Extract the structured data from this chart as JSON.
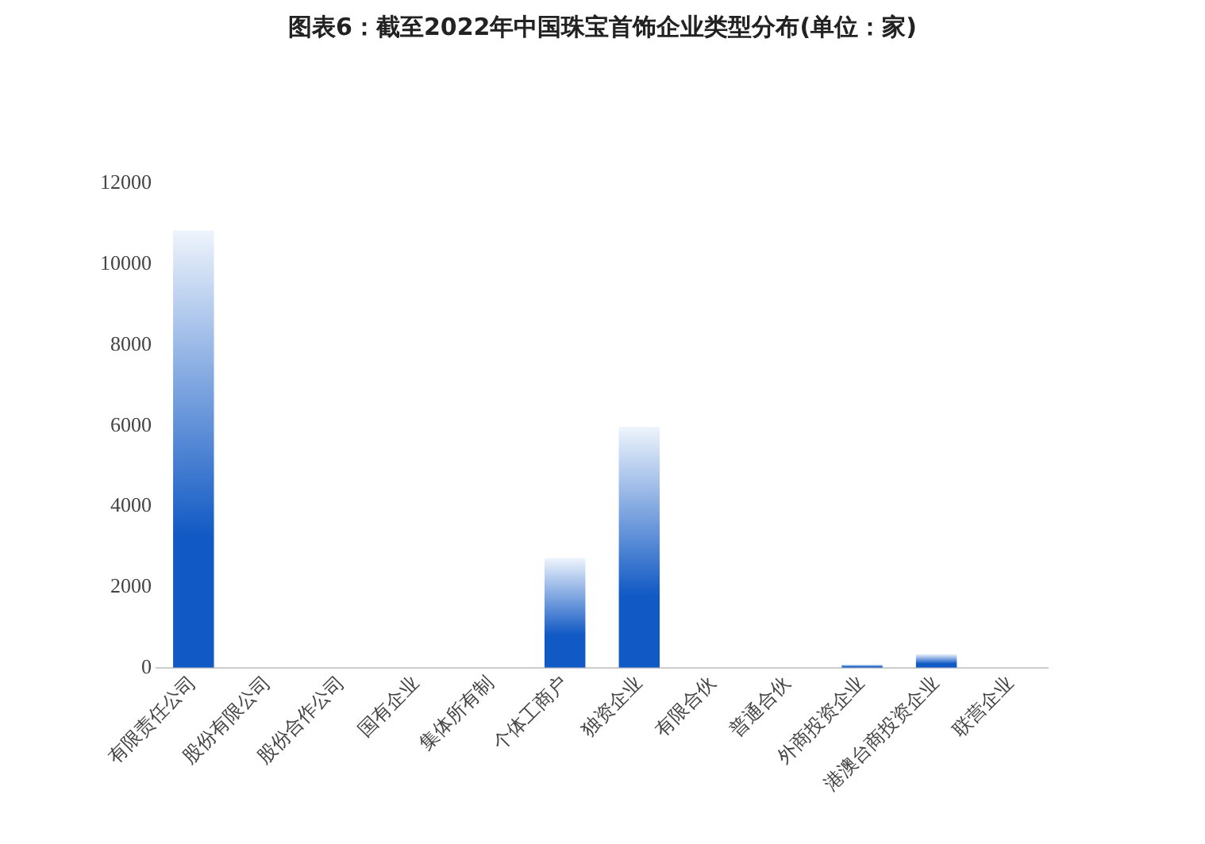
{
  "chart_data": {
    "type": "bar",
    "title": "图表6：截至2022年中国珠宝首饰企业类型分布(单位：家)",
    "categories": [
      "有限责任公司",
      "股份有限公司",
      "股份合作公司",
      "国有企业",
      "集体所有制",
      "个体工商户",
      "独资企业",
      "有限合伙",
      "普通合伙",
      "外商投资企业",
      "港澳台商投资企业",
      "联营企业"
    ],
    "values": [
      10840,
      0,
      0,
      0,
      0,
      2720,
      5970,
      0,
      0,
      80,
      340,
      0
    ],
    "color": "#1159c4",
    "ylim": [
      0,
      12000
    ],
    "yticks": [
      0,
      2000,
      4000,
      6000,
      8000,
      10000,
      12000
    ],
    "grid": false,
    "legend": false
  }
}
